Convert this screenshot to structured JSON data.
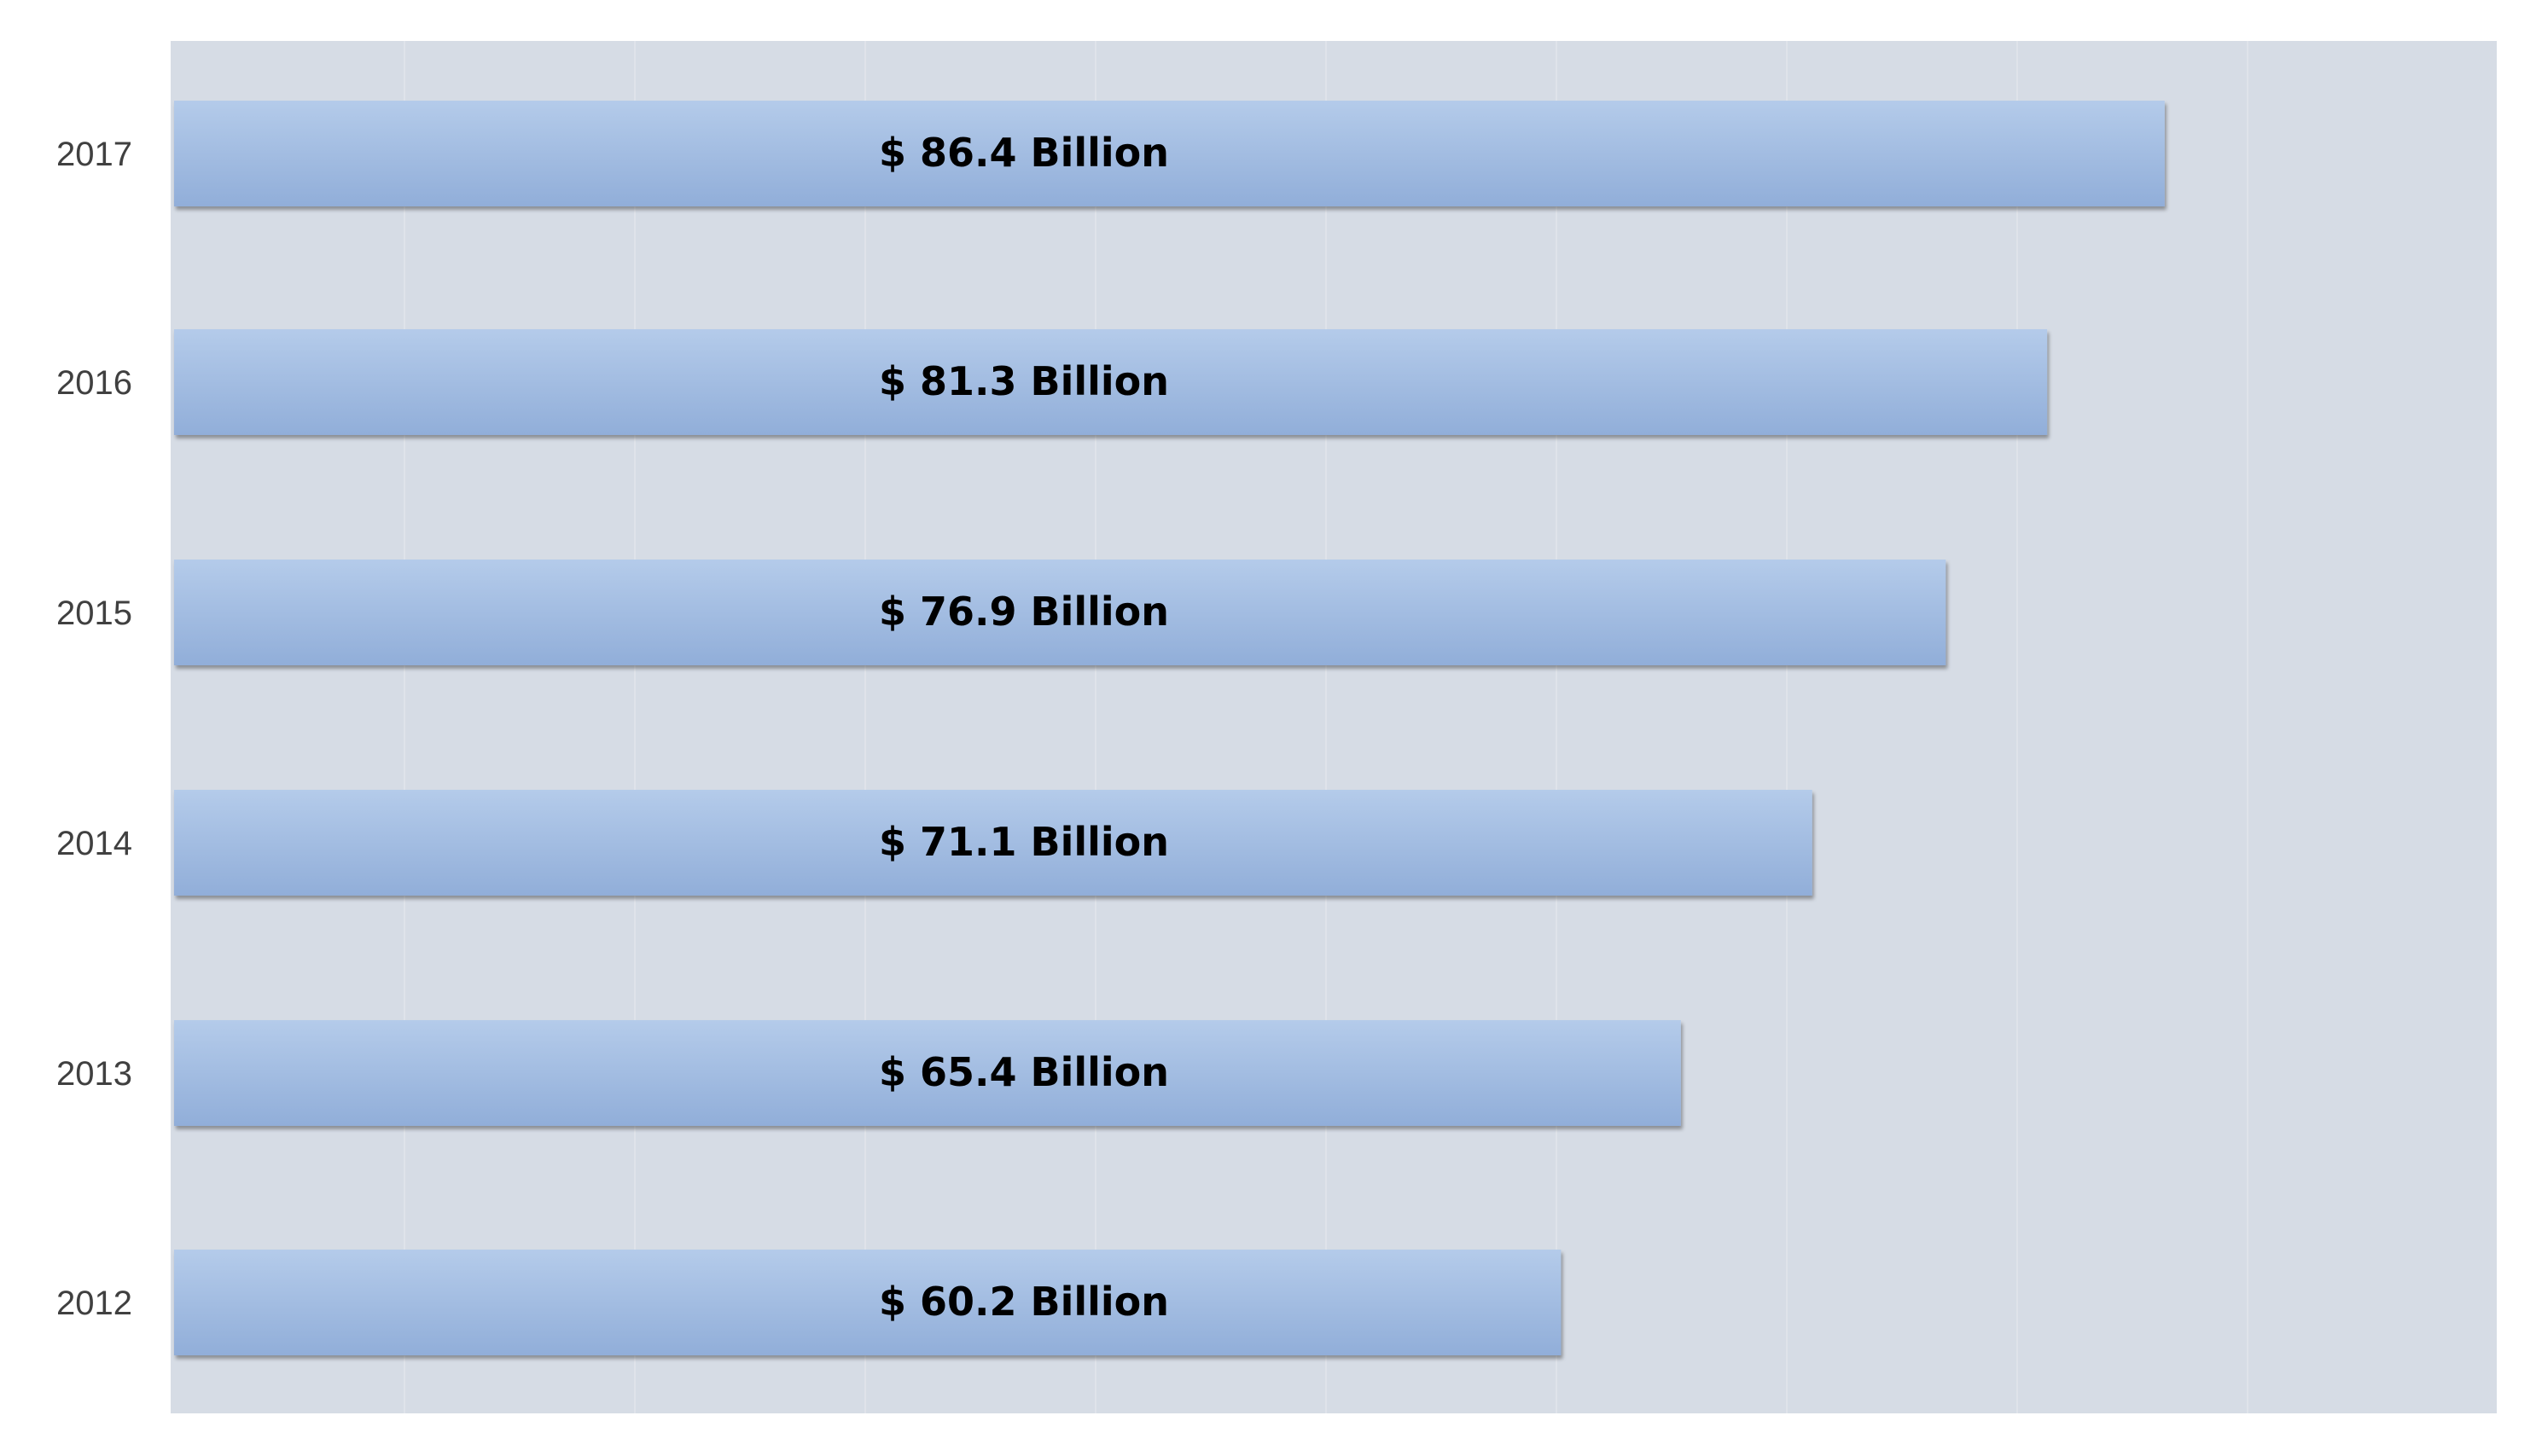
{
  "colors": {
    "plot_background": "#d6dce5",
    "bar_fill_top": "#b4cbea",
    "bar_fill_bottom": "#91aed9",
    "gridline": "#dfe3ea",
    "label_text": "#404040",
    "value_text": "#000000"
  },
  "chart_data": {
    "type": "bar",
    "orientation": "horizontal",
    "title": "",
    "xlabel": "",
    "ylabel": "",
    "categories": [
      "2012",
      "2013",
      "2014",
      "2015",
      "2016",
      "2017"
    ],
    "values": [
      60.2,
      65.4,
      71.1,
      76.9,
      81.3,
      86.4
    ],
    "data_labels": [
      "$ 60.2 Billion",
      "$ 65.4 Billion",
      "$ 71.1 Billion",
      "$ 76.9 Billion",
      "$ 81.3 Billion",
      "$ 86.4 Billion"
    ],
    "xlim": [
      0,
      100
    ],
    "x_gridline_step": 10,
    "grid": true,
    "legend": "none"
  }
}
